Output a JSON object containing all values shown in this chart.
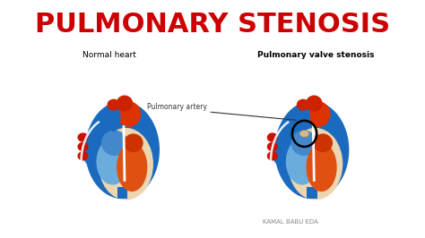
{
  "title": "PULMONARY STENOSIS",
  "title_color": "#CC0000",
  "title_fontsize": 22,
  "bg_color": "#FFFFFF",
  "label_left": "Normal heart",
  "label_right": "Pulmonary valve stenosis",
  "label_artery": "Pulmonary artery",
  "credit": "KAMAL BABU EDA",
  "blue_outer": "#1A6BBF",
  "blue_dark": "#0D4A99",
  "orange_red": "#E05010",
  "deep_red": "#CC1100",
  "beige": "#EDD5B0",
  "blue_inner": "#4488CC",
  "blue_light": "#6AADDD",
  "annotation_color": "#333333",
  "credit_color": "#888888"
}
